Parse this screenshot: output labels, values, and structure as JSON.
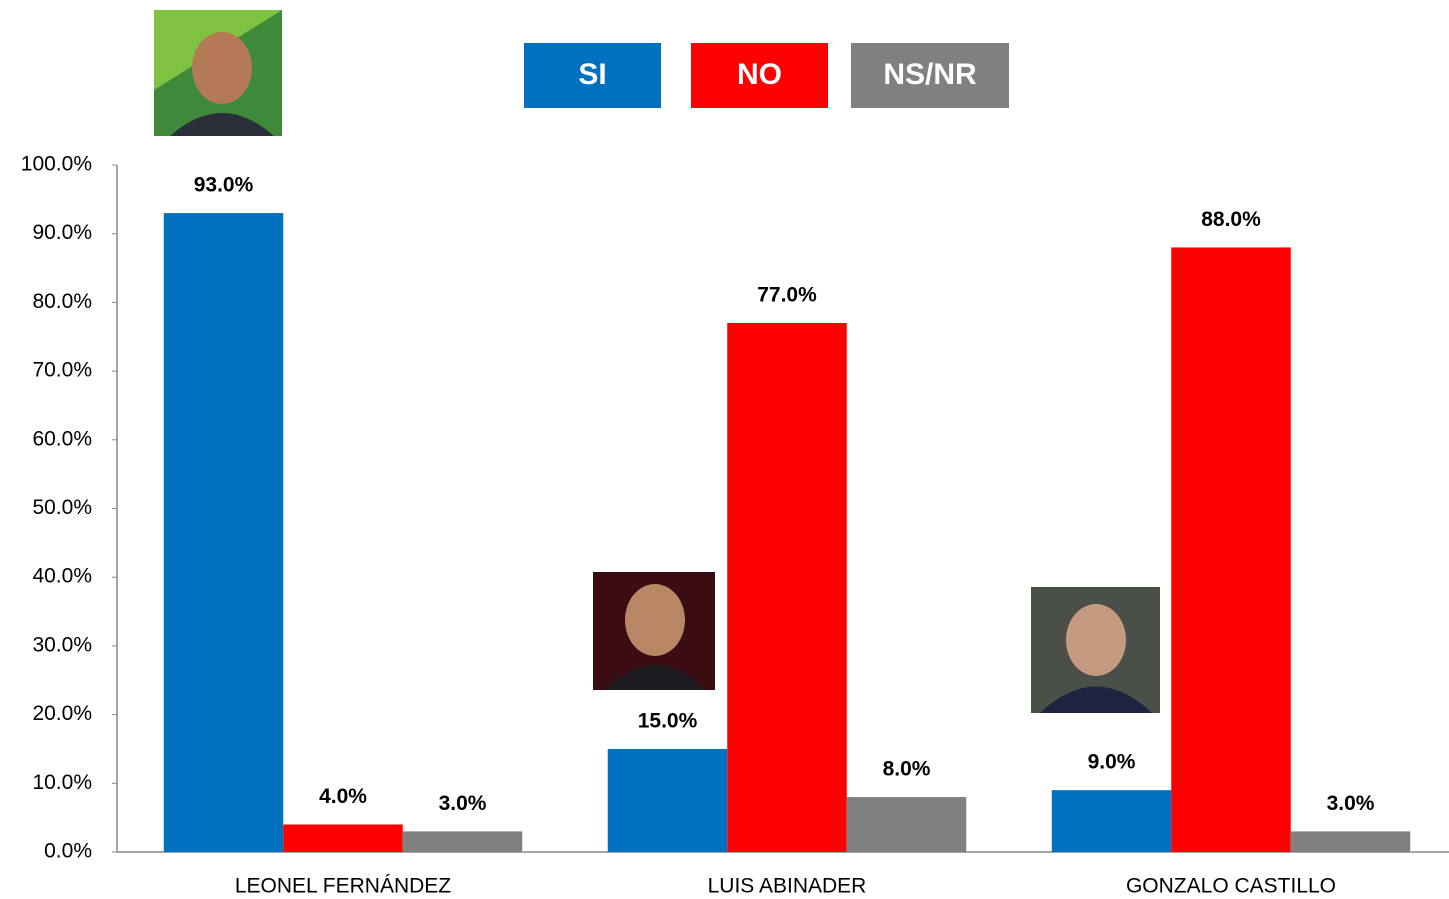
{
  "chart_data": {
    "type": "bar",
    "categories": [
      "LEONEL FERNÁNDEZ",
      "LUIS ABINADER",
      "GONZALO CASTILLO"
    ],
    "series": [
      {
        "name": "SI",
        "color": "#0070c0",
        "values": [
          93,
          15,
          9
        ],
        "value_labels": [
          "93.0%",
          "15.0%",
          "9.0%"
        ]
      },
      {
        "name": "NO",
        "color": "#ff0000",
        "values": [
          4,
          77,
          88
        ],
        "value_labels": [
          "4.0%",
          "77.0%",
          "88.0%"
        ]
      },
      {
        "name": "NS/NR",
        "color": "#808080",
        "values": [
          3,
          8,
          3
        ],
        "value_labels": [
          "3.0%",
          "8.0%",
          "3.0%"
        ]
      }
    ],
    "ylim": [
      0,
      100
    ],
    "yticks": [
      {
        "value": 0,
        "label": "0.0%"
      },
      {
        "value": 10,
        "label": "10.0%"
      },
      {
        "value": 20,
        "label": "20.0%"
      },
      {
        "value": 30,
        "label": "30.0%"
      },
      {
        "value": 40,
        "label": "40.0%"
      },
      {
        "value": 50,
        "label": "50.0%"
      },
      {
        "value": 60,
        "label": "60.0%"
      },
      {
        "value": 70,
        "label": "70.0%"
      },
      {
        "value": 80,
        "label": "80.0%"
      },
      {
        "value": 90,
        "label": "90.0%"
      },
      {
        "value": 100,
        "label": "100.0%"
      }
    ],
    "grid": false,
    "legend": "top"
  }
}
